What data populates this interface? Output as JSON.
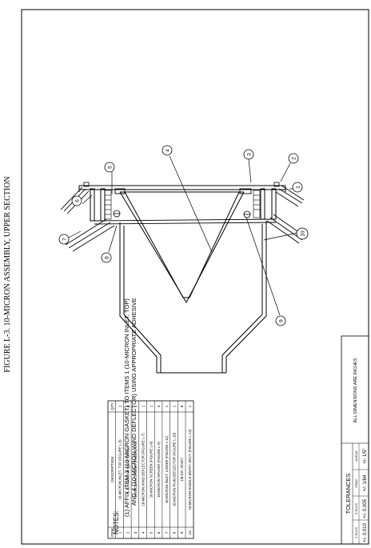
{
  "figure_title": "FIGURE L-3.  10-MICRON ASSEMBLY, UPPER SECTION",
  "parts_table": {
    "headers": [
      "ITEM",
      "DESCRIPTION",
      "QTY"
    ],
    "rows": [
      {
        "item": "1",
        "description": "10-MICRON INLET, TOP (FIGURE L-5)",
        "qty": "1"
      },
      {
        "item": "2",
        "description": "6-32 X 3/8 PAN HEAD SCREW",
        "qty": "8"
      },
      {
        "item": "3",
        "description": "10-MICRON GASKET (FIGURE L-6)",
        "qty": "1"
      },
      {
        "item": "4",
        "description": "10-MICRON WIND DEFLECTOR (FIGURE L-7)",
        "qty": "1"
      },
      {
        "item": "5",
        "description": "10-MICRON SCREEN (FIGURE L-8)",
        "qty": "1"
      },
      {
        "item": "6",
        "description": "10-MICRON SPACER (FIGURE L-9)",
        "qty": "4"
      },
      {
        "item": "7",
        "description": "10-MICRON INLET, LOWER (FIGURE L-11)",
        "qty": "1"
      },
      {
        "item": "8",
        "description": "10-MICRON RAIN DEFLECTOR (FIGURE L-10)",
        "qty": "1"
      },
      {
        "item": "9",
        "description": "1/8 DIA. RIVET",
        "qty": "8"
      },
      {
        "item": "10",
        "description": "10-MICRON NOZZLE ENTRY SECT. (FIGURE L-12)",
        "qty": "1"
      }
    ]
  },
  "notes": {
    "heading": "NOTES:",
    "line1": "(1) AFFIX ITEM 3 (10-MICRON GASKET) TO ITEMS 1 (10-MICRON INLET, TOP)",
    "line2": "AND 4 (10-MICRON WIND DEFLECTOR) USING APPROPRIATE ADHESIVE"
  },
  "tolerances": {
    "title": "TOLERANCES",
    "col1_label": "2 PLCS",
    "col2_label": "3 PLCS",
    "col3_label": "FRAC",
    "col4_label": "ANGLE",
    "col1_value": "+/- 0.010",
    "col2_value": "+/- 0.005",
    "col3_value": "+/- 1/64",
    "col4_value": "+/- 1/5°",
    "dimensions_note": "ALL DIMENSIONS ARE INCHES"
  },
  "callouts": [
    "1",
    "2",
    "3",
    "4",
    "5",
    "6",
    "7",
    "8",
    "9",
    "10"
  ]
}
